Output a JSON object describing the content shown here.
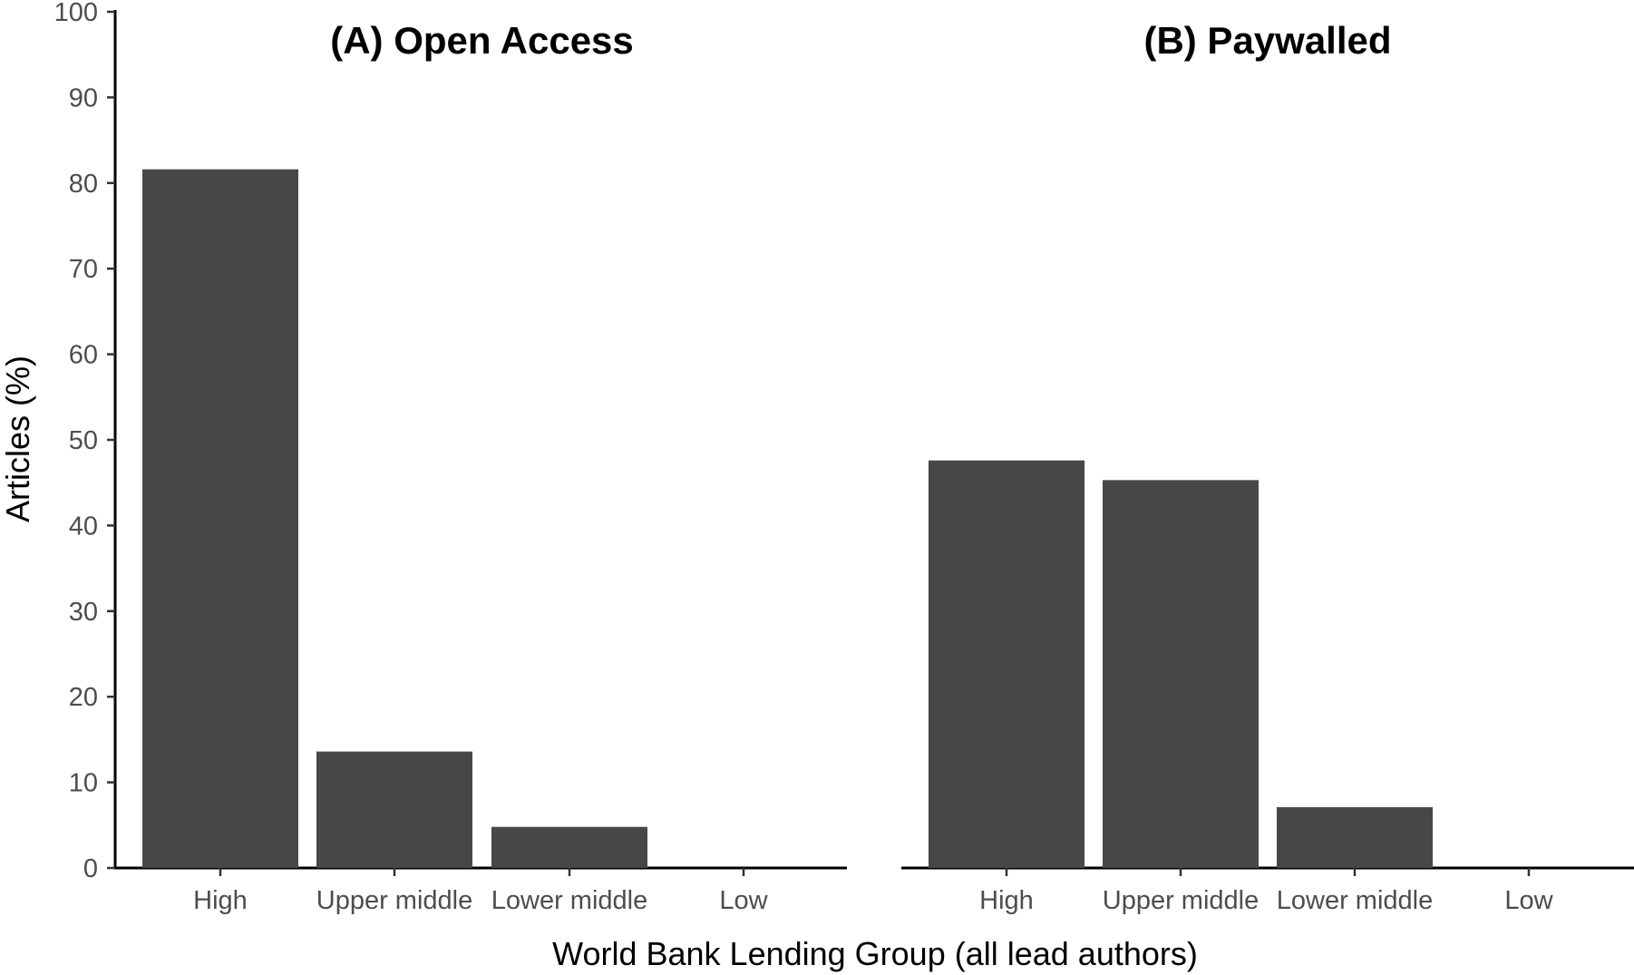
{
  "chart_data": {
    "type": "bar",
    "ylabel": "Articles (%)",
    "xlabel": "World Bank Lending Group (all lead authors)",
    "ylim": [
      0,
      100
    ],
    "yticks": [
      "0",
      "10",
      "20",
      "30",
      "40",
      "50",
      "60",
      "70",
      "80",
      "90",
      "100"
    ],
    "categories": [
      "High",
      "Upper middle",
      "Lower middle",
      "Low"
    ],
    "grid": false,
    "bar_color": "#474747",
    "panels": [
      {
        "title": "(A) Open Access",
        "values": [
          81.6,
          13.6,
          4.8,
          0
        ]
      },
      {
        "title": "(B) Paywalled",
        "values": [
          47.6,
          45.3,
          7.1,
          0
        ]
      }
    ]
  }
}
